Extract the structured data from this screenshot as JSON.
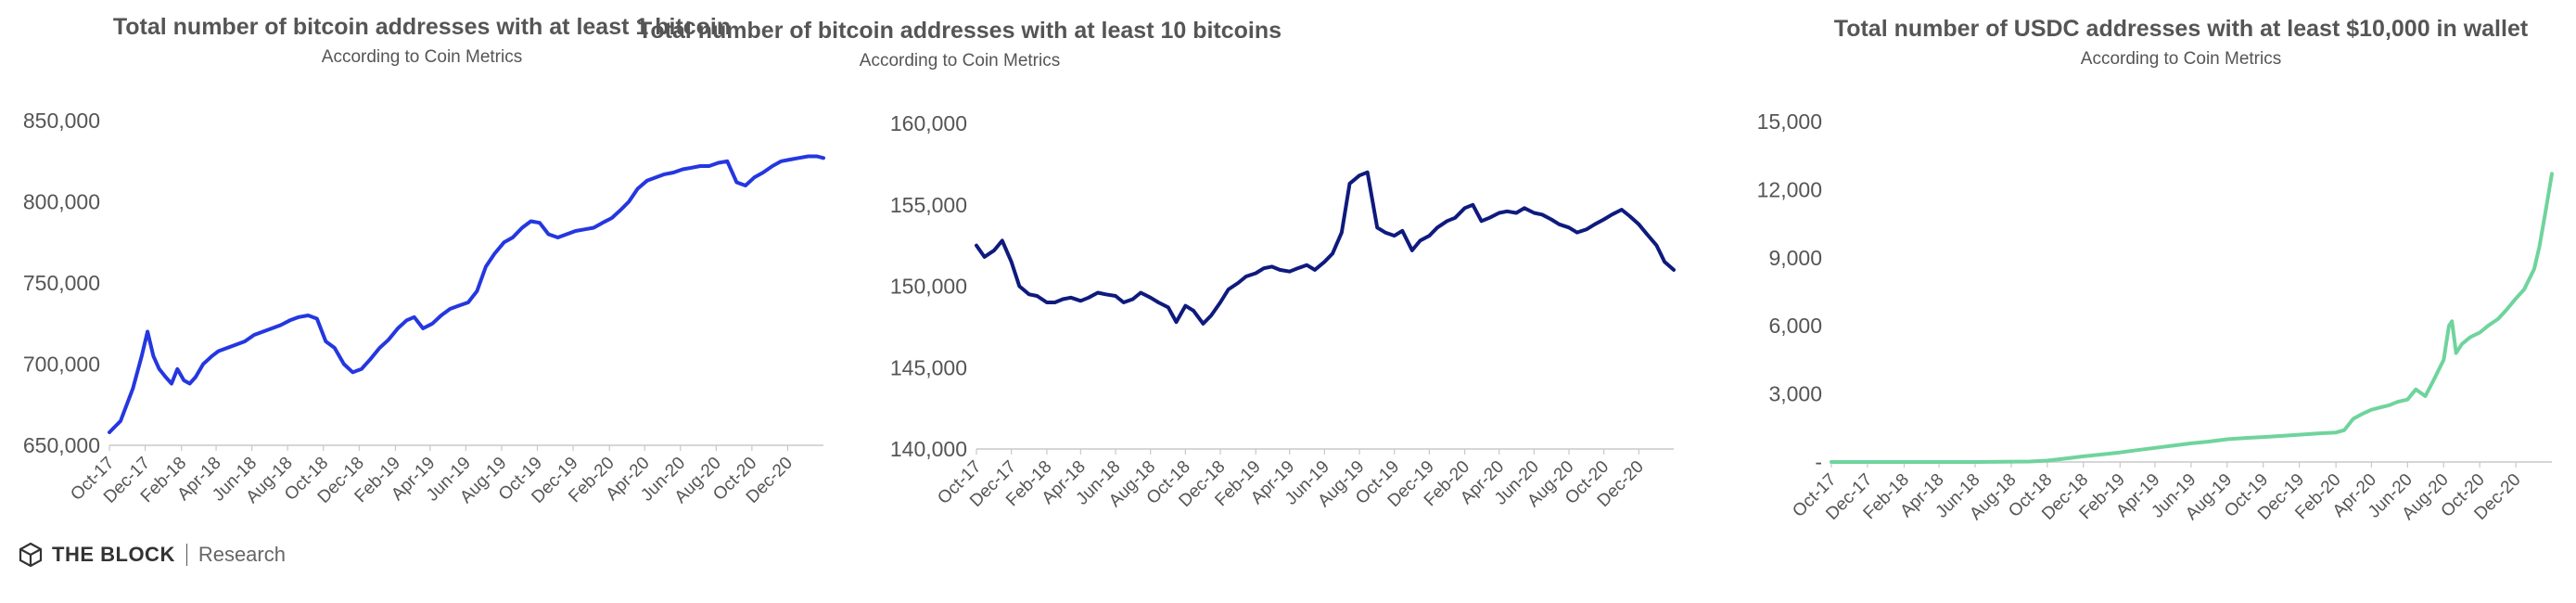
{
  "chart_data": [
    {
      "type": "line",
      "title": "Total number of bitcoin addresses with at least 1 bitcoin",
      "subtitle": "According to Coin Metrics",
      "color": "#2437e0",
      "ylim": [
        650000,
        850000
      ],
      "yticks": [
        650000,
        700000,
        750000,
        800000,
        850000
      ],
      "ytick_labels": [
        "650,000",
        "700,000",
        "750,000",
        "800,000",
        "850,000"
      ],
      "xrange": [
        "2017-10-01",
        "2021-01-31"
      ],
      "xtick_dates": [
        "2017-10-01",
        "2017-12-01",
        "2018-02-01",
        "2018-04-01",
        "2018-06-01",
        "2018-08-01",
        "2018-10-01",
        "2018-12-01",
        "2019-02-01",
        "2019-04-01",
        "2019-06-01",
        "2019-08-01",
        "2019-10-01",
        "2019-12-01",
        "2020-02-01",
        "2020-04-01",
        "2020-06-01",
        "2020-08-01",
        "2020-10-01",
        "2020-12-01"
      ],
      "xtick_labels": [
        "Oct-17",
        "Dec-17",
        "Feb-18",
        "Apr-18",
        "Jun-18",
        "Aug-18",
        "Oct-18",
        "Dec-18",
        "Feb-19",
        "Apr-19",
        "Jun-19",
        "Aug-19",
        "Oct-19",
        "Dec-19",
        "Feb-20",
        "Apr-20",
        "Jun-20",
        "Aug-20",
        "Oct-20",
        "Dec-20"
      ],
      "series": [
        {
          "x": [
            "2017-10-01",
            "2017-10-20",
            "2017-11-10",
            "2017-11-25",
            "2017-12-05",
            "2017-12-15",
            "2017-12-25",
            "2018-01-05",
            "2018-01-15",
            "2018-01-25",
            "2018-02-05",
            "2018-02-15",
            "2018-02-25",
            "2018-03-10",
            "2018-03-25",
            "2018-04-05",
            "2018-04-20",
            "2018-05-05",
            "2018-05-20",
            "2018-06-05",
            "2018-06-20",
            "2018-07-05",
            "2018-07-20",
            "2018-08-05",
            "2018-08-20",
            "2018-09-05",
            "2018-09-20",
            "2018-10-05",
            "2018-10-20",
            "2018-11-05",
            "2018-11-20",
            "2018-12-05",
            "2018-12-20",
            "2019-01-05",
            "2019-01-20",
            "2019-02-05",
            "2019-02-20",
            "2019-03-05",
            "2019-03-20",
            "2019-04-05",
            "2019-04-20",
            "2019-05-05",
            "2019-05-20",
            "2019-06-05",
            "2019-06-20",
            "2019-07-05",
            "2019-07-20",
            "2019-08-05",
            "2019-08-20",
            "2019-09-05",
            "2019-09-20",
            "2019-10-05",
            "2019-10-20",
            "2019-11-05",
            "2019-11-20",
            "2019-12-05",
            "2019-12-20",
            "2020-01-05",
            "2020-01-20",
            "2020-02-05",
            "2020-02-20",
            "2020-03-05",
            "2020-03-20",
            "2020-04-05",
            "2020-04-20",
            "2020-05-05",
            "2020-05-20",
            "2020-06-05",
            "2020-06-20",
            "2020-07-05",
            "2020-07-20",
            "2020-08-05",
            "2020-08-20",
            "2020-09-05",
            "2020-09-20",
            "2020-10-05",
            "2020-10-20",
            "2020-11-05",
            "2020-11-20",
            "2020-12-05",
            "2020-12-20",
            "2021-01-05",
            "2021-01-20",
            "2021-01-31"
          ],
          "y": [
            658000,
            665000,
            685000,
            705000,
            720000,
            705000,
            697000,
            692000,
            688000,
            697000,
            690000,
            688000,
            692000,
            700000,
            705000,
            708000,
            710000,
            712000,
            714000,
            718000,
            720000,
            722000,
            724000,
            727000,
            729000,
            730000,
            728000,
            714000,
            710000,
            700000,
            695000,
            697000,
            703000,
            710000,
            715000,
            722000,
            727000,
            729000,
            722000,
            725000,
            730000,
            734000,
            736000,
            738000,
            745000,
            760000,
            768000,
            775000,
            778000,
            784000,
            788000,
            787000,
            780000,
            778000,
            780000,
            782000,
            783000,
            784000,
            787000,
            790000,
            795000,
            800000,
            808000,
            813000,
            815000,
            817000,
            818000,
            820000,
            821000,
            822000,
            822000,
            824000,
            825000,
            812000,
            810000,
            815000,
            818000,
            822000,
            825000,
            826000,
            827000,
            828000,
            828000,
            827000
          ]
        }
      ]
    },
    {
      "type": "line",
      "title": "Total number of bitcoin addresses with at least 10 bitcoins",
      "subtitle": "According to Coin Metrics",
      "color": "#0f1a7e",
      "ylim": [
        140000,
        160000
      ],
      "yticks": [
        140000,
        145000,
        150000,
        155000,
        160000
      ],
      "ytick_labels": [
        "140,000",
        "145,000",
        "150,000",
        "155,000",
        "160,000"
      ],
      "xrange": [
        "2017-10-01",
        "2021-01-31"
      ],
      "xtick_dates": [
        "2017-10-01",
        "2017-12-01",
        "2018-02-01",
        "2018-04-01",
        "2018-06-01",
        "2018-08-01",
        "2018-10-01",
        "2018-12-01",
        "2019-02-01",
        "2019-04-01",
        "2019-06-01",
        "2019-08-01",
        "2019-10-01",
        "2019-12-01",
        "2020-02-01",
        "2020-04-01",
        "2020-06-01",
        "2020-08-01",
        "2020-10-01",
        "2020-12-01"
      ],
      "xtick_labels": [
        "Oct-17",
        "Dec-17",
        "Feb-18",
        "Apr-18",
        "Jun-18",
        "Aug-18",
        "Oct-18",
        "Dec-18",
        "Feb-19",
        "Apr-19",
        "Jun-19",
        "Aug-19",
        "Oct-19",
        "Dec-19",
        "Feb-20",
        "Apr-20",
        "Jun-20",
        "Aug-20",
        "Oct-20",
        "Dec-20"
      ],
      "series": [
        {
          "x": [
            "2017-10-01",
            "2017-10-15",
            "2017-11-01",
            "2017-11-15",
            "2017-12-01",
            "2017-12-15",
            "2018-01-01",
            "2018-01-15",
            "2018-02-01",
            "2018-02-15",
            "2018-03-01",
            "2018-03-15",
            "2018-04-01",
            "2018-04-15",
            "2018-05-01",
            "2018-05-15",
            "2018-06-01",
            "2018-06-15",
            "2018-07-01",
            "2018-07-15",
            "2018-08-01",
            "2018-08-15",
            "2018-09-01",
            "2018-09-15",
            "2018-10-01",
            "2018-10-15",
            "2018-11-01",
            "2018-11-15",
            "2018-12-01",
            "2018-12-15",
            "2019-01-01",
            "2019-01-15",
            "2019-02-01",
            "2019-02-15",
            "2019-03-01",
            "2019-03-15",
            "2019-04-01",
            "2019-04-15",
            "2019-05-01",
            "2019-05-15",
            "2019-06-01",
            "2019-06-15",
            "2019-07-01",
            "2019-07-15",
            "2019-08-01",
            "2019-08-15",
            "2019-09-01",
            "2019-09-15",
            "2019-10-01",
            "2019-10-15",
            "2019-11-01",
            "2019-11-15",
            "2019-12-01",
            "2019-12-15",
            "2020-01-01",
            "2020-01-15",
            "2020-02-01",
            "2020-02-15",
            "2020-03-01",
            "2020-03-15",
            "2020-04-01",
            "2020-04-15",
            "2020-05-01",
            "2020-05-15",
            "2020-06-01",
            "2020-06-15",
            "2020-07-01",
            "2020-07-15",
            "2020-08-01",
            "2020-08-15",
            "2020-09-01",
            "2020-09-15",
            "2020-10-01",
            "2020-10-15",
            "2020-11-01",
            "2020-11-15",
            "2020-12-01",
            "2020-12-15",
            "2021-01-01",
            "2021-01-15",
            "2021-01-31"
          ],
          "y": [
            152500,
            151800,
            152200,
            152800,
            151500,
            150000,
            149500,
            149400,
            149000,
            149000,
            149200,
            149300,
            149100,
            149300,
            149600,
            149500,
            149400,
            149000,
            149200,
            149600,
            149300,
            149000,
            148700,
            147800,
            148800,
            148500,
            147700,
            148200,
            149000,
            149800,
            150200,
            150600,
            150800,
            151100,
            151200,
            151000,
            150900,
            151100,
            151300,
            151000,
            151500,
            152000,
            153300,
            156300,
            156800,
            157000,
            153600,
            153300,
            153100,
            153400,
            152200,
            152800,
            153100,
            153600,
            154000,
            154200,
            154800,
            155000,
            154000,
            154200,
            154500,
            154600,
            154500,
            154800,
            154500,
            154400,
            154100,
            153800,
            153600,
            153300,
            153500,
            153800,
            154100,
            154400,
            154700,
            154300,
            153800,
            153200,
            152500,
            151500,
            151000
          ]
        }
      ]
    },
    {
      "type": "line",
      "title": "Total number of USDC addresses with at least $10,000 in wallet",
      "subtitle": "According to Coin Metrics",
      "color": "#6fd49c",
      "ylim": [
        0,
        15000
      ],
      "yticks": [
        0,
        3000,
        6000,
        9000,
        12000,
        15000
      ],
      "ytick_labels": [
        "-",
        "3,000",
        "6,000",
        "9,000",
        "12,000",
        "15,000"
      ],
      "xrange": [
        "2017-10-01",
        "2021-01-31"
      ],
      "xtick_dates": [
        "2017-10-01",
        "2017-12-01",
        "2018-02-01",
        "2018-04-01",
        "2018-06-01",
        "2018-08-01",
        "2018-10-01",
        "2018-12-01",
        "2019-02-01",
        "2019-04-01",
        "2019-06-01",
        "2019-08-01",
        "2019-10-01",
        "2019-12-01",
        "2020-02-01",
        "2020-04-01",
        "2020-06-01",
        "2020-08-01",
        "2020-10-01",
        "2020-12-01"
      ],
      "xtick_labels": [
        "Oct-17",
        "Dec-17",
        "Feb-18",
        "Apr-18",
        "Jun-18",
        "Aug-18",
        "Oct-18",
        "Dec-18",
        "Feb-19",
        "Apr-19",
        "Jun-19",
        "Aug-19",
        "Oct-19",
        "Dec-19",
        "Feb-20",
        "Apr-20",
        "Jun-20",
        "Aug-20",
        "Oct-20",
        "Dec-20"
      ],
      "series": [
        {
          "x": [
            "2017-10-01",
            "2018-06-01",
            "2018-09-01",
            "2018-10-01",
            "2018-11-01",
            "2018-12-01",
            "2019-01-01",
            "2019-02-01",
            "2019-03-01",
            "2019-04-01",
            "2019-05-01",
            "2019-06-01",
            "2019-07-01",
            "2019-08-01",
            "2019-09-01",
            "2019-10-01",
            "2019-11-01",
            "2019-12-01",
            "2020-01-01",
            "2020-02-01",
            "2020-02-15",
            "2020-03-01",
            "2020-03-15",
            "2020-04-01",
            "2020-04-15",
            "2020-05-01",
            "2020-05-15",
            "2020-06-01",
            "2020-06-15",
            "2020-07-01",
            "2020-07-15",
            "2020-08-01",
            "2020-08-10",
            "2020-08-15",
            "2020-08-22",
            "2020-09-01",
            "2020-09-15",
            "2020-10-01",
            "2020-10-15",
            "2020-11-01",
            "2020-11-15",
            "2020-12-01",
            "2020-12-15",
            "2021-01-01",
            "2021-01-10",
            "2021-01-20",
            "2021-01-31"
          ],
          "y": [
            0,
            0,
            20,
            60,
            150,
            250,
            330,
            420,
            520,
            620,
            720,
            820,
            900,
            1000,
            1060,
            1100,
            1150,
            1200,
            1260,
            1300,
            1400,
            1900,
            2100,
            2300,
            2400,
            2500,
            2650,
            2750,
            3200,
            2900,
            3600,
            4500,
            6000,
            6200,
            4800,
            5200,
            5500,
            5700,
            6000,
            6300,
            6700,
            7200,
            7600,
            8500,
            9500,
            11000,
            12700
          ]
        }
      ]
    }
  ],
  "branding": {
    "logo_icon": "cube-icon",
    "name": "THE BLOCK",
    "tagline": "Research"
  }
}
